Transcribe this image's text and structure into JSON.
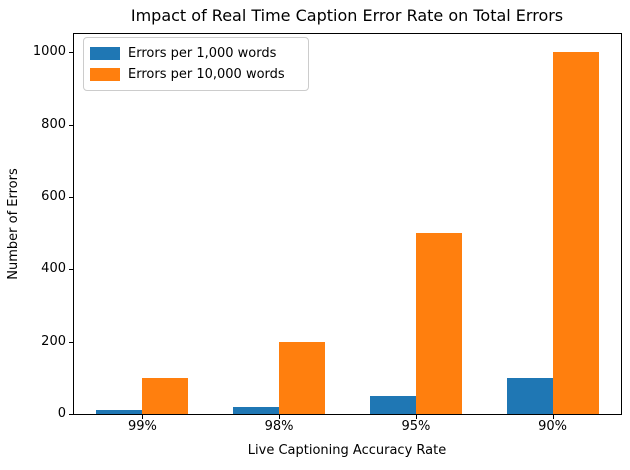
{
  "figure": {
    "background": "#ffffff",
    "text_color": "#000000"
  },
  "chart_data": {
    "type": "bar",
    "title": "Impact of Real Time Caption Error Rate on Total Errors",
    "xlabel": "Live Captioning Accuracy Rate",
    "ylabel": "Number of Errors",
    "categories": [
      "99%",
      "98%",
      "95%",
      "90%"
    ],
    "series": [
      {
        "name": "Errors per 1,000 words",
        "color": "#1f77b4",
        "values": [
          10,
          20,
          50,
          100
        ]
      },
      {
        "name": "Errors per 10,000 words",
        "color": "#ff7f0e",
        "values": [
          100,
          200,
          500,
          1000
        ]
      }
    ],
    "ylim": [
      0,
      1050
    ],
    "yticks": [
      0,
      200,
      400,
      600,
      800,
      1000
    ],
    "grid": false,
    "legend_position": "upper left",
    "spine_color": "#000000"
  }
}
